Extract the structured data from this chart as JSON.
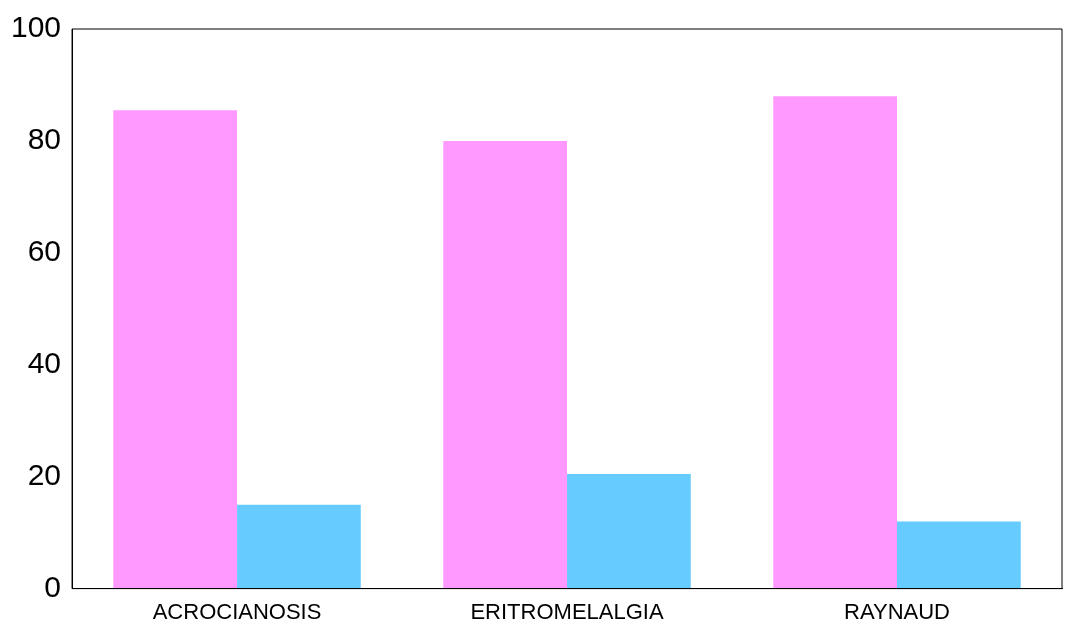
{
  "chart_data": {
    "type": "bar",
    "categories": [
      "ACROCIANOSIS",
      "ERITROMELALGIA",
      "RAYNAUD"
    ],
    "series": [
      {
        "color": "#ff99ff",
        "values": [
          85.5,
          80,
          88
        ]
      },
      {
        "color": "#66ccff",
        "values": [
          15,
          20.5,
          12
        ]
      }
    ],
    "ylim": [
      0,
      100
    ],
    "yticks": [
      0,
      20,
      40,
      60,
      80,
      100
    ],
    "grid": false,
    "legend": false
  }
}
